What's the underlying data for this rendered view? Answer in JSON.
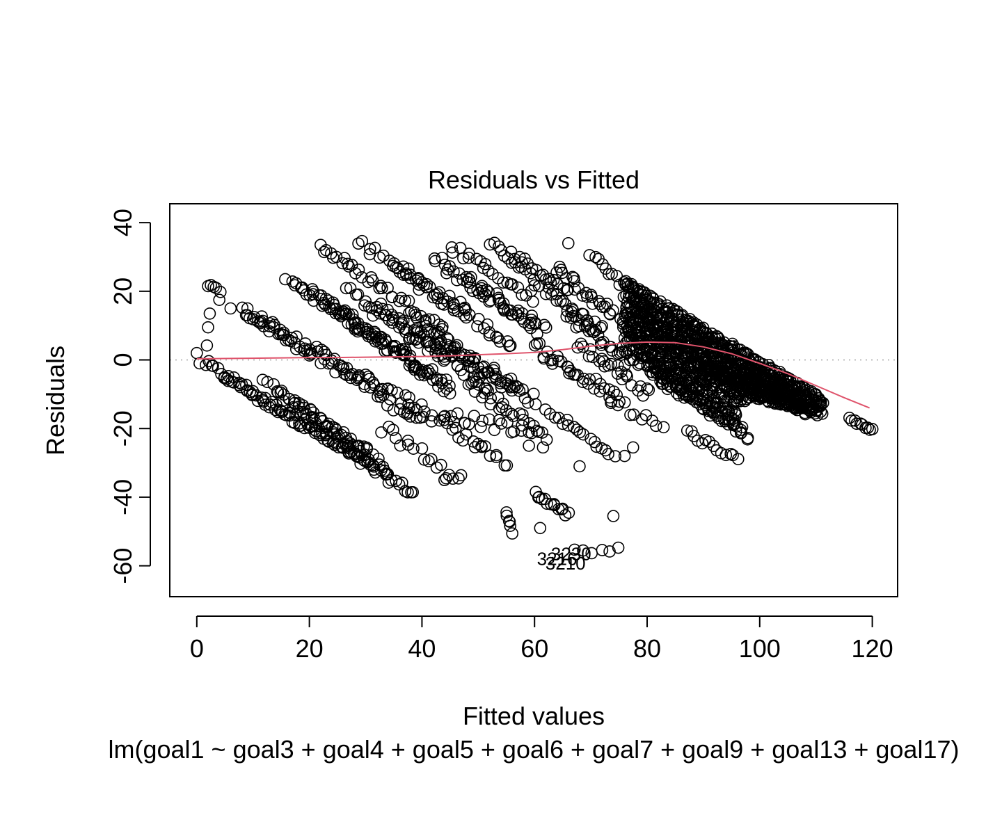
{
  "chart_data": {
    "type": "scatter",
    "title": "Residuals vs Fitted",
    "xlabel": "Fitted values",
    "ylabel": "Residuals",
    "caption": "lm(goal1 ~ goal3 + goal4 + goal5 + goal6 + goal7 + goal9 + goal13 + goal17)",
    "xlim": [
      -4.8,
      124.5
    ],
    "ylim": [
      -69,
      45.5
    ],
    "x_ticks": [
      0,
      20,
      40,
      60,
      80,
      100,
      120
    ],
    "x_tick_labels": [
      "0",
      "20",
      "40",
      "60",
      "80",
      "100",
      "120"
    ],
    "y_ticks": [
      -60,
      -40,
      -20,
      0,
      20,
      40
    ],
    "y_tick_labels": [
      "-60",
      "-40",
      "-20",
      "0",
      "20",
      "40"
    ],
    "reference_line_y": 0,
    "grid": false,
    "legend": "none",
    "colors": {
      "points": "#000000",
      "smooth": "#DF536B",
      "reference": "#BEBEBE"
    },
    "labeled_points": [
      {
        "label": "3230",
        "x": 66.5,
        "y": -56.5
      },
      {
        "label": "3216",
        "x": 64.0,
        "y": -58.0
      },
      {
        "label": "3210",
        "x": 65.5,
        "y": -59.3
      }
    ],
    "smooth": {
      "x": [
        0,
        5,
        10,
        15,
        20,
        25,
        30,
        35,
        40,
        45,
        50,
        55,
        60,
        65,
        70,
        75,
        80,
        85,
        90,
        95,
        100,
        105,
        110,
        115,
        119.5
      ],
      "y": [
        0.3,
        0.4,
        0.5,
        0.6,
        0.7,
        0.7,
        0.8,
        0.9,
        1.0,
        1.2,
        1.5,
        1.8,
        2.2,
        3.0,
        4.0,
        4.8,
        5.2,
        5.0,
        3.8,
        1.8,
        -1.0,
        -4.0,
        -7.5,
        -11.0,
        -14.0
      ]
    },
    "point_groups": [
      {
        "x0": 1.5,
        "y0": -1.0,
        "x1": 38.5,
        "y1": -39.0,
        "n": 70,
        "jitter": 1.2
      },
      {
        "x0": 5.0,
        "y0": -5.0,
        "x1": 34.0,
        "y1": -33.0,
        "n": 40,
        "jitter": 1.2
      },
      {
        "x0": 12.0,
        "y0": -7.0,
        "x1": 33.0,
        "y1": -30.0,
        "n": 30,
        "jitter": 1.5
      },
      {
        "x0": 14.0,
        "y0": -9.0,
        "x1": 30.0,
        "y1": -27.0,
        "n": 22,
        "jitter": 1.5
      },
      {
        "x0": 17.0,
        "y0": -13.0,
        "x1": 30.0,
        "y1": -28.0,
        "n": 18,
        "jitter": 1.5
      },
      {
        "x0": 8.0,
        "y0": 15.0,
        "x1": 40.0,
        "y1": -18.0,
        "n": 55,
        "jitter": 1.6
      },
      {
        "x0": 10.0,
        "y0": 13.0,
        "x1": 38.0,
        "y1": -13.0,
        "n": 45,
        "jitter": 1.5
      },
      {
        "x0": 16.0,
        "y0": 24.0,
        "x1": 40.0,
        "y1": -3.0,
        "n": 40,
        "jitter": 1.6
      },
      {
        "x0": 19.0,
        "y0": 21.0,
        "x1": 45.0,
        "y1": -9.0,
        "n": 40,
        "jitter": 1.6
      },
      {
        "x0": 22.0,
        "y0": 33.0,
        "x1": 44.0,
        "y1": 9.0,
        "n": 38,
        "jitter": 1.4
      },
      {
        "x0": 29.0,
        "y0": 34.5,
        "x1": 48.0,
        "y1": 14.0,
        "n": 28,
        "jitter": 1.5
      },
      {
        "x0": 23.0,
        "y0": 17.0,
        "x1": 45.0,
        "y1": -8.0,
        "n": 40,
        "jitter": 1.6
      },
      {
        "x0": 27.0,
        "y0": 20.0,
        "x1": 44.0,
        "y1": 0.0,
        "n": 30,
        "jitter": 1.7
      },
      {
        "x0": 32.0,
        "y0": 16.0,
        "x1": 52.0,
        "y1": -8.0,
        "n": 40,
        "jitter": 1.8
      },
      {
        "x0": 35.0,
        "y0": 27.0,
        "x1": 56.0,
        "y1": 4.0,
        "n": 36,
        "jitter": 1.7
      },
      {
        "x0": 38.0,
        "y0": 12.0,
        "x1": 60.0,
        "y1": -12.0,
        "n": 40,
        "jitter": 1.8
      },
      {
        "x0": 42.0,
        "y0": 30.0,
        "x1": 62.0,
        "y1": 8.0,
        "n": 36,
        "jitter": 1.8
      },
      {
        "x0": 45.0,
        "y0": 33.0,
        "x1": 60.0,
        "y1": 18.0,
        "n": 22,
        "jitter": 1.5
      },
      {
        "x0": 42.0,
        "y0": 8.0,
        "x1": 57.0,
        "y1": -10.0,
        "n": 30,
        "jitter": 1.8
      },
      {
        "x0": 47.0,
        "y0": 24.0,
        "x1": 60.0,
        "y1": 10.0,
        "n": 22,
        "jitter": 1.6
      },
      {
        "x0": 52.0,
        "y0": 34.0,
        "x1": 61.0,
        "y1": 22.0,
        "n": 15,
        "jitter": 1.2
      },
      {
        "x0": 56.0,
        "y0": 31.0,
        "x1": 66.0,
        "y1": 20.0,
        "n": 18,
        "jitter": 1.3
      },
      {
        "x0": 38.0,
        "y0": -12.0,
        "x1": 55.0,
        "y1": -30.0,
        "n": 26,
        "jitter": 1.6
      },
      {
        "x0": 44.0,
        "y0": -16.0,
        "x1": 62.0,
        "y1": -22.0,
        "n": 24,
        "jitter": 1.6
      },
      {
        "x0": 33.0,
        "y0": -20.0,
        "x1": 47.0,
        "y1": -35.0,
        "n": 18,
        "jitter": 1.5
      },
      {
        "x0": 48.0,
        "y0": -6.0,
        "x1": 60.0,
        "y1": -20.0,
        "n": 22,
        "jitter": 1.6
      },
      {
        "x0": 60.0,
        "y0": -39.0,
        "x1": 66.0,
        "y1": -45.0,
        "n": 14,
        "jitter": 0.8
      },
      {
        "x0": 55.0,
        "y0": -44.0,
        "x1": 56.0,
        "y1": -50.0,
        "n": 6,
        "jitter": 0.6
      },
      {
        "x0": 67.0,
        "y0": -56.0,
        "x1": 75.0,
        "y1": -55.0,
        "n": 6,
        "jitter": 0.8
      },
      {
        "x0": 60.0,
        "y0": 4.0,
        "x1": 75.0,
        "y1": -12.0,
        "n": 34,
        "jitter": 1.8
      },
      {
        "x0": 62.0,
        "y0": 20.0,
        "x1": 72.0,
        "y1": 8.0,
        "n": 24,
        "jitter": 1.8
      },
      {
        "x0": 64.0,
        "y0": 26.0,
        "x1": 77.0,
        "y1": 10.0,
        "n": 30,
        "jitter": 1.8
      },
      {
        "x0": 66.0,
        "y0": 13.0,
        "x1": 78.0,
        "y1": -2.0,
        "n": 26,
        "jitter": 1.8
      },
      {
        "x0": 62.0,
        "y0": -15.0,
        "x1": 74.0,
        "y1": -27.0,
        "n": 18,
        "jitter": 1.4
      },
      {
        "x0": 68.0,
        "y0": 5.0,
        "x1": 80.0,
        "y1": -10.0,
        "n": 24,
        "jitter": 1.8
      },
      {
        "x0": 70.0,
        "y0": 30.0,
        "x1": 76.0,
        "y1": 22.0,
        "n": 10,
        "jitter": 1.2
      },
      {
        "x0": 74.0,
        "y0": -12.0,
        "x1": 83.0,
        "y1": -20.0,
        "n": 10,
        "jitter": 1.4
      },
      {
        "x0": 76.0,
        "y0": 22.0,
        "x1": 111.0,
        "y1": -12.0,
        "n": 170,
        "jitter": 1.1
      },
      {
        "x0": 76.0,
        "y0": 19.0,
        "x1": 111.0,
        "y1": -14.0,
        "n": 170,
        "jitter": 1.1
      },
      {
        "x0": 76.0,
        "y0": 16.0,
        "x1": 110.0,
        "y1": -15.0,
        "n": 160,
        "jitter": 1.2
      },
      {
        "x0": 76.0,
        "y0": 13.0,
        "x1": 108.0,
        "y1": -15.0,
        "n": 150,
        "jitter": 1.2
      },
      {
        "x0": 76.0,
        "y0": 10.0,
        "x1": 106.0,
        "y1": -14.0,
        "n": 130,
        "jitter": 1.3
      },
      {
        "x0": 76.0,
        "y0": 7.0,
        "x1": 103.0,
        "y1": -12.0,
        "n": 110,
        "jitter": 1.4
      },
      {
        "x0": 76.0,
        "y0": 4.0,
        "x1": 100.0,
        "y1": -12.0,
        "n": 90,
        "jitter": 1.5
      },
      {
        "x0": 78.0,
        "y0": 1.0,
        "x1": 97.0,
        "y1": -13.0,
        "n": 70,
        "jitter": 1.6
      },
      {
        "x0": 80.0,
        "y0": -2.0,
        "x1": 96.0,
        "y1": -16.0,
        "n": 50,
        "jitter": 1.6
      },
      {
        "x0": 82.0,
        "y0": -5.0,
        "x1": 97.0,
        "y1": -20.0,
        "n": 40,
        "jitter": 1.6
      },
      {
        "x0": 85.0,
        "y0": -8.0,
        "x1": 98.0,
        "y1": -22.0,
        "n": 30,
        "jitter": 1.5
      },
      {
        "x0": 87.0,
        "y0": -21.0,
        "x1": 96.0,
        "y1": -29.0,
        "n": 14,
        "jitter": 0.9
      },
      {
        "x0": 97.0,
        "y0": -5.0,
        "x1": 111.0,
        "y1": -16.0,
        "n": 40,
        "jitter": 1.0
      },
      {
        "x0": 116.0,
        "y0": -17.0,
        "x1": 120.0,
        "y1": -20.5,
        "n": 10,
        "jitter": 0.5
      }
    ],
    "points_extra": [
      {
        "x": 0,
        "y": 2
      },
      {
        "x": 0.5,
        "y": -1
      },
      {
        "x": 2,
        "y": 21.5
      },
      {
        "x": 2.5,
        "y": 21.8
      },
      {
        "x": 3,
        "y": 21.3
      },
      {
        "x": 3.4,
        "y": 21.0
      },
      {
        "x": 4,
        "y": 17.5
      },
      {
        "x": 4.2,
        "y": 19.8
      },
      {
        "x": 2,
        "y": 9.5
      },
      {
        "x": 2.3,
        "y": 13.5
      },
      {
        "x": 1.8,
        "y": 4.2
      },
      {
        "x": 6,
        "y": 15
      },
      {
        "x": 9,
        "y": 15
      },
      {
        "x": 44,
        "y": -35
      },
      {
        "x": 44.3,
        "y": -34.5
      },
      {
        "x": 68,
        "y": -31
      },
      {
        "x": 74,
        "y": -45.5
      },
      {
        "x": 61,
        "y": -49
      },
      {
        "x": 66,
        "y": 34
      },
      {
        "x": 59,
        "y": -25
      },
      {
        "x": 61.5,
        "y": -25.5
      },
      {
        "x": 76,
        "y": -28
      },
      {
        "x": 77.5,
        "y": -25.5
      },
      {
        "x": 50,
        "y": -24.5
      }
    ]
  }
}
